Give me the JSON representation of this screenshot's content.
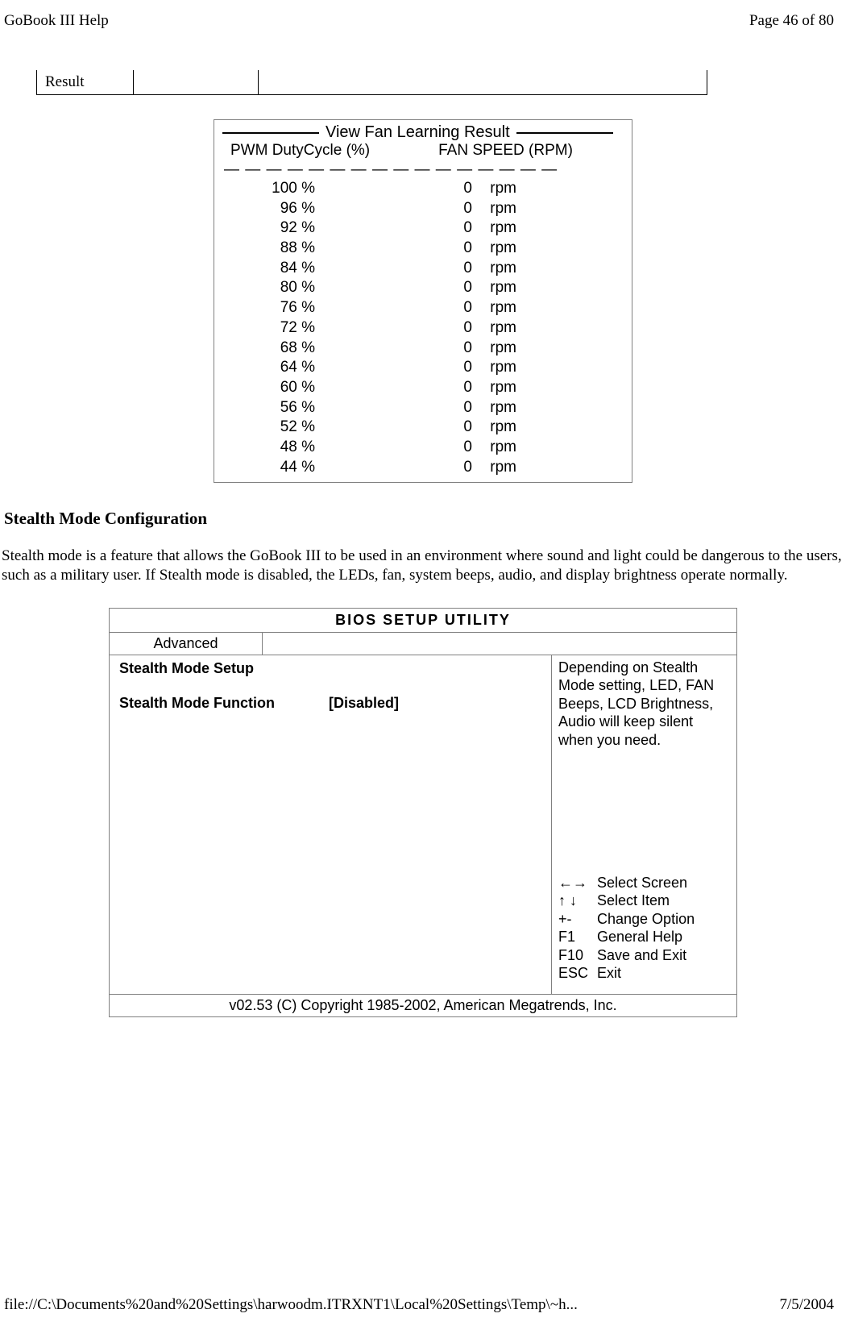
{
  "header": {
    "title": "GoBook III Help",
    "page_info": "Page 46 of 80"
  },
  "result_row_label": "Result",
  "fan_panel": {
    "title": "View Fan Learning Result",
    "header_left": "PWM DutyCycle (%)",
    "header_right": "FAN SPEED (RPM)",
    "divider": "— — — — — — — — — — — — — — — —",
    "rows": [
      {
        "pwm": "100 %",
        "speed": "0",
        "unit": "rpm"
      },
      {
        "pwm": "96 %",
        "speed": "0",
        "unit": "rpm"
      },
      {
        "pwm": "92 %",
        "speed": "0",
        "unit": "rpm"
      },
      {
        "pwm": "88 %",
        "speed": "0",
        "unit": "rpm"
      },
      {
        "pwm": "84 %",
        "speed": "0",
        "unit": "rpm"
      },
      {
        "pwm": "80 %",
        "speed": "0",
        "unit": "rpm"
      },
      {
        "pwm": "76 %",
        "speed": "0",
        "unit": "rpm"
      },
      {
        "pwm": "72 %",
        "speed": "0",
        "unit": "rpm"
      },
      {
        "pwm": "68 %",
        "speed": "0",
        "unit": "rpm"
      },
      {
        "pwm": "64 %",
        "speed": "0",
        "unit": "rpm"
      },
      {
        "pwm": "60 %",
        "speed": "0",
        "unit": "rpm"
      },
      {
        "pwm": "56 %",
        "speed": "0",
        "unit": "rpm"
      },
      {
        "pwm": "52 %",
        "speed": "0",
        "unit": "rpm"
      },
      {
        "pwm": "48 %",
        "speed": "0",
        "unit": "rpm"
      },
      {
        "pwm": "44 %",
        "speed": "0",
        "unit": "rpm"
      }
    ]
  },
  "stealth_section": {
    "heading": "Stealth Mode Configuration",
    "paragraph": "Stealth mode is a feature that allows the GoBook III to be used in an environment where sound and light could be dangerous to the users, such as a military user.  If Stealth mode is disabled, the LEDs, fan, system beeps, audio, and display brightness operate normally."
  },
  "bios": {
    "title": "BIOS   SETUP   UTILITY",
    "tab": "Advanced",
    "left_heading": "Stealth Mode Setup",
    "setting_label": "Stealth Mode Function",
    "setting_value": "[Disabled]",
    "help_text": "Depending on Stealth Mode setting, LED, FAN Beeps, LCD Brightness, Audio will keep silent when you need.",
    "keys": [
      {
        "key": "←→",
        "label": "Select Screen"
      },
      {
        "key": "↑ ↓",
        "label": "Select Item"
      },
      {
        "key": "+-",
        "label": "Change Option"
      },
      {
        "key": "F1",
        "label": "General Help"
      },
      {
        "key": "F10",
        "label": "Save and Exit"
      },
      {
        "key": "ESC",
        "label": "Exit"
      }
    ],
    "copyright": "v02.53 (C) Copyright 1985-2002, American Megatrends, Inc."
  },
  "footer": {
    "path": "file://C:\\Documents%20and%20Settings\\harwoodm.ITRXNT1\\Local%20Settings\\Temp\\~h...",
    "date": "7/5/2004"
  }
}
